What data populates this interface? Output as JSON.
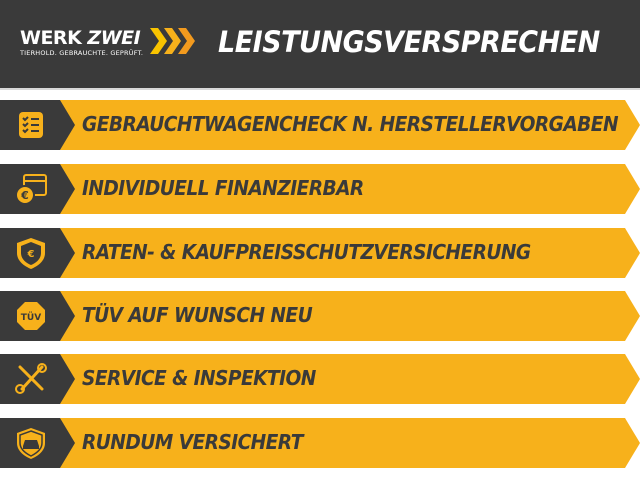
{
  "header": {
    "logo": {
      "brand_a": "WERK",
      "brand_b": "ZWEI",
      "tagline": "TIERHOLD. GEBRAUCHTE. GEPRÜFT."
    },
    "title": "LEISTUNGSVERSPRECHEN"
  },
  "colors": {
    "dark": "#3a3a3a",
    "accent": "#f7b11b",
    "chevrons": [
      "#f9c400",
      "#f7b11b",
      "#f29a1e"
    ]
  },
  "items": [
    {
      "label": "GEBRAUCHTWAGENCHECK N. HERSTELLERVORGABEN",
      "icon": "checklist-icon"
    },
    {
      "label": "INDIVIDUELL FINANZIERBAR",
      "icon": "calendar-euro-icon"
    },
    {
      "label": "RATEN- & KAUFPREISSCHUTZVERSICHERUNG",
      "icon": "shield-euro-icon"
    },
    {
      "label": "TÜV AUF WUNSCH NEU",
      "icon": "tuv-badge-icon",
      "badge": "TÜV"
    },
    {
      "label": "SERVICE & INSPEKTION",
      "icon": "tools-icon"
    },
    {
      "label": "RUNDUM VERSICHERT",
      "icon": "shield-car-icon"
    }
  ]
}
